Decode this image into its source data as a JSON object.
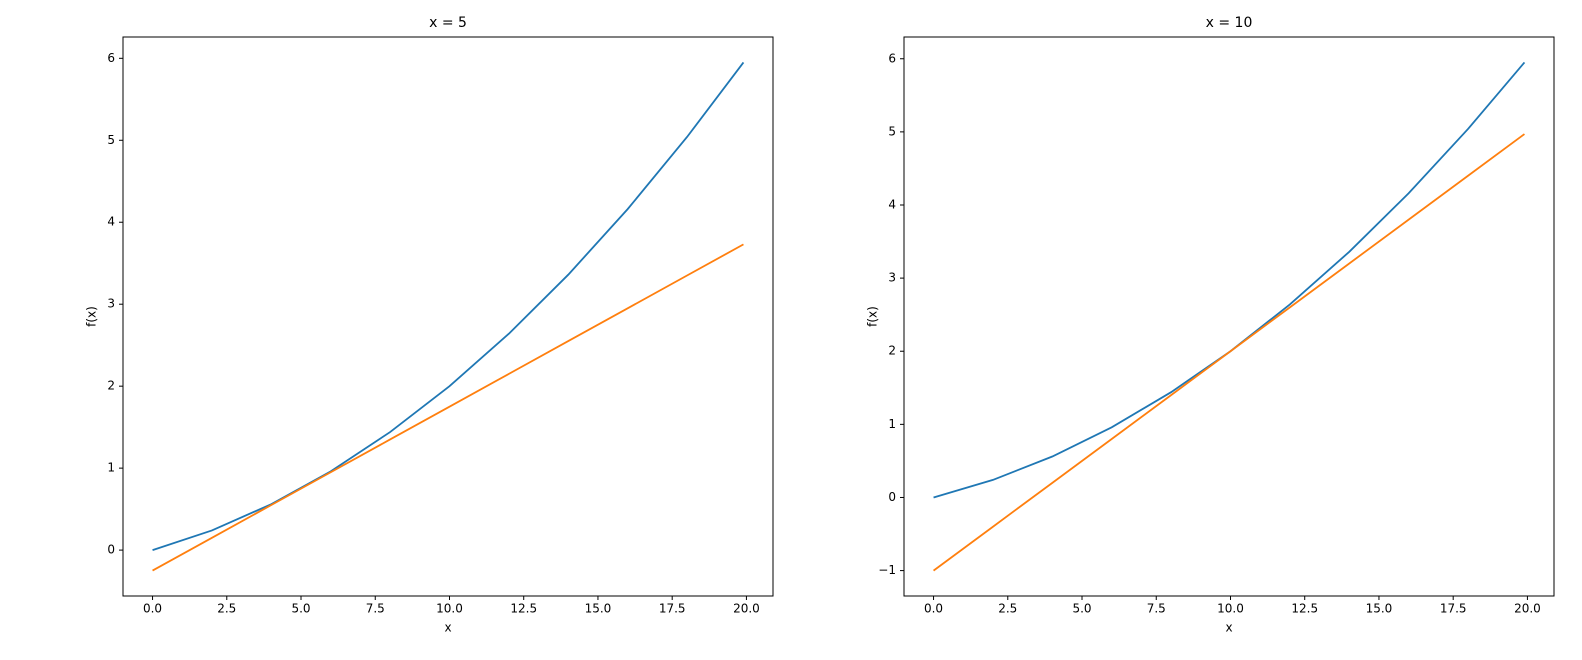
{
  "chart_data": [
    {
      "type": "line",
      "title": "x = 5",
      "xlabel": "x",
      "ylabel": "f(x)",
      "x": [
        0,
        2,
        4,
        6,
        8,
        10,
        12,
        14,
        16,
        18,
        19.9
      ],
      "series": [
        {
          "color": "#1f77b4",
          "values": [
            0,
            0.24,
            0.56,
            0.96,
            1.44,
            2,
            2.64,
            3.36,
            4.16,
            5.04,
            5.95
          ]
        },
        {
          "color": "#ff7f0e",
          "values": [
            -0.25,
            0.15,
            0.55,
            0.95,
            1.35,
            1.75,
            2.15,
            2.55,
            2.95,
            3.35,
            3.73
          ]
        }
      ],
      "xlim": [
        -0.995,
        20.895
      ],
      "xticks": [
        {
          "value": 0,
          "label": "0.0"
        },
        2.5,
        {
          "value": 5,
          "label": "5.0"
        },
        7.5,
        {
          "value": 10,
          "label": "10.0"
        },
        12.5,
        {
          "value": 15,
          "label": "15.0"
        },
        17.5,
        {
          "value": 20,
          "label": "20.0"
        }
      ],
      "ylim": [
        -0.56,
        6.26
      ],
      "yticks": [
        0,
        1,
        2,
        3,
        4,
        5,
        6
      ]
    },
    {
      "type": "line",
      "title": "x = 10",
      "xlabel": "x",
      "ylabel": "f(x)",
      "x": [
        0,
        2,
        4,
        6,
        8,
        10,
        12,
        14,
        16,
        18,
        19.9
      ],
      "series": [
        {
          "color": "#1f77b4",
          "values": [
            0,
            0.24,
            0.56,
            0.96,
            1.44,
            2,
            2.64,
            3.36,
            4.16,
            5.04,
            5.95
          ]
        },
        {
          "color": "#ff7f0e",
          "values": [
            -1,
            -0.4,
            0.2,
            0.8,
            1.4,
            2,
            2.6,
            3.2,
            3.8,
            4.4,
            4.97
          ]
        }
      ],
      "xlim": [
        -0.995,
        20.895
      ],
      "xticks": [
        {
          "value": 0,
          "label": "0.0"
        },
        2.5,
        {
          "value": 5,
          "label": "5.0"
        },
        7.5,
        {
          "value": 10,
          "label": "10.0"
        },
        12.5,
        {
          "value": 15,
          "label": "15.0"
        },
        17.5,
        {
          "value": 20,
          "label": "20.0"
        }
      ],
      "ylim": [
        -1.3475,
        6.2975
      ],
      "yticks": [
        {
          "value": -1,
          "label": "−1"
        },
        0,
        1,
        2,
        3,
        4,
        5,
        6
      ]
    }
  ]
}
